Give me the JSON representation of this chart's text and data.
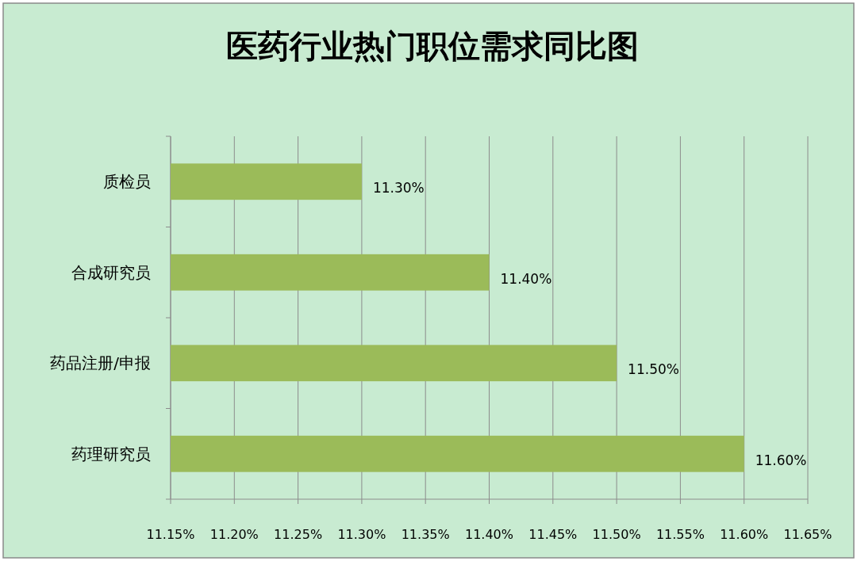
{
  "chart_data": {
    "type": "bar",
    "orientation": "horizontal",
    "title": "医药行业热门职位需求同比图",
    "categories": [
      "质检员",
      "合成研究员",
      "药品注册/申报",
      "药理研究员"
    ],
    "values": [
      11.3,
      11.4,
      11.5,
      11.6
    ],
    "value_labels": [
      "11.30%",
      "11.40%",
      "11.50%",
      "11.60%"
    ],
    "color": "#9bbb59",
    "xlim": [
      11.15,
      11.65
    ],
    "xticks": [
      {
        "value": 11.15,
        "label": "11.15%"
      },
      {
        "value": 11.2,
        "label": "11.20%"
      },
      {
        "value": 11.25,
        "label": "11.25%"
      },
      {
        "value": 11.3,
        "label": "11.30%"
      },
      {
        "value": 11.35,
        "label": "11.35%"
      },
      {
        "value": 11.4,
        "label": "11.40%"
      },
      {
        "value": 11.45,
        "label": "11.45%"
      },
      {
        "value": 11.5,
        "label": "11.50%"
      },
      {
        "value": 11.55,
        "label": "11.55%"
      },
      {
        "value": 11.6,
        "label": "11.60%"
      },
      {
        "value": 11.65,
        "label": "11.65%"
      }
    ],
    "grid": "x"
  }
}
